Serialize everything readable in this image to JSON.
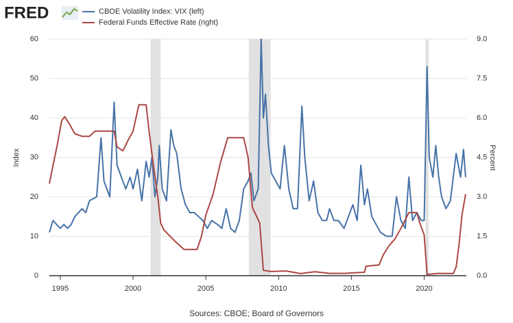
{
  "chart_data": {
    "type": "line",
    "logo": "FRED",
    "source": "Sources: CBOE; Board of Governors",
    "ylabel": "Index",
    "y2label": "Percent",
    "xlim": [
      1994.25,
      2022.9
    ],
    "xticks": [
      1995,
      2000,
      2005,
      2010,
      2015,
      2020
    ],
    "ylim": [
      0,
      60
    ],
    "yticks": [
      0,
      10,
      20,
      30,
      40,
      50,
      60
    ],
    "y2lim": [
      0,
      9
    ],
    "y2ticks": [
      {
        "value": 0,
        "label": "0.0"
      },
      1.5,
      {
        "value": 3,
        "label": "3.0"
      },
      4.5,
      {
        "value": 6,
        "label": "6.0"
      },
      7.5,
      {
        "value": 9,
        "label": "9.0"
      }
    ],
    "grid": true,
    "recession_color": "#e1e1e1",
    "recessions": [
      [
        2001.2,
        2001.9
      ],
      [
        2007.95,
        2009.45
      ],
      [
        2020.1,
        2020.3
      ]
    ],
    "series": [
      {
        "name": "CBOE Volatility Index: VIX (left)",
        "color": "#4572a7",
        "axis": "y",
        "x": [
          1994.25,
          1994.5,
          1994.75,
          1995,
          1995.25,
          1995.5,
          1995.75,
          1996,
          1996.5,
          1996.75,
          1997,
          1997.5,
          1997.8,
          1998,
          1998.4,
          1998.7,
          1998.9,
          1999.2,
          1999.5,
          1999.8,
          2000,
          2000.3,
          2000.6,
          2000.9,
          2001.1,
          2001.3,
          2001.5,
          2001.7,
          2001.8,
          2002,
          2002.3,
          2002.6,
          2002.8,
          2003,
          2003.3,
          2003.6,
          2003.9,
          2004.2,
          2004.5,
          2004.8,
          2005.1,
          2005.4,
          2005.8,
          2006.1,
          2006.4,
          2006.7,
          2007,
          2007.3,
          2007.6,
          2007.9,
          2008.1,
          2008.3,
          2008.6,
          2008.8,
          2008.95,
          2009.1,
          2009.3,
          2009.5,
          2009.8,
          2010.1,
          2010.4,
          2010.7,
          2011,
          2011.3,
          2011.6,
          2011.8,
          2012.1,
          2012.4,
          2012.7,
          2013,
          2013.3,
          2013.5,
          2013.8,
          2014.1,
          2014.5,
          2014.8,
          2015.1,
          2015.4,
          2015.65,
          2015.9,
          2016.1,
          2016.4,
          2016.7,
          2017,
          2017.4,
          2017.8,
          2018.1,
          2018.4,
          2018.7,
          2018.95,
          2019.2,
          2019.5,
          2019.8,
          2020,
          2020.2,
          2020.35,
          2020.6,
          2020.8,
          2021,
          2021.2,
          2021.5,
          2021.8,
          2022,
          2022.2,
          2022.5,
          2022.7,
          2022.85
        ],
        "values": [
          11,
          14,
          13,
          12,
          13,
          12,
          13,
          15,
          17,
          16,
          19,
          20,
          35,
          24,
          20,
          44,
          28,
          25,
          22,
          25,
          22,
          27,
          19,
          29,
          25,
          30,
          20,
          25,
          33,
          22,
          19,
          37,
          33,
          31,
          22,
          18,
          16,
          16,
          15,
          14,
          12,
          14,
          13,
          12,
          17,
          12,
          11,
          14,
          22,
          24,
          26,
          19,
          22,
          60,
          40,
          46,
          33,
          26,
          24,
          22,
          33,
          22,
          17,
          17,
          43,
          30,
          19,
          24,
          16,
          14,
          14,
          17,
          14,
          14,
          12,
          15,
          18,
          14,
          28,
          18,
          22,
          15,
          13,
          11,
          10,
          10,
          20,
          14,
          12,
          25,
          14,
          16,
          14,
          14,
          53,
          30,
          25,
          33,
          25,
          20,
          17,
          19,
          25,
          31,
          25,
          32,
          25
        ]
      },
      {
        "name": "Federal Funds Effective Rate (right)",
        "color": "#aa4643",
        "axis": "y2",
        "x": [
          1994.25,
          1994.5,
          1994.8,
          1995.1,
          1995.3,
          1995.6,
          1996,
          1996.5,
          1997,
          1997.4,
          1998,
          1998.7,
          1998.9,
          1999.3,
          1999.7,
          2000,
          2000.4,
          2000.9,
          2001.1,
          2001.4,
          2001.7,
          2001.9,
          2002.1,
          2002.9,
          2003.5,
          2004.4,
          2004.7,
          2005,
          2005.5,
          2006,
          2006.5,
          2007.6,
          2007.9,
          2008.2,
          2008.7,
          2008.95,
          2009.5,
          2010.5,
          2011.5,
          2012.5,
          2013.5,
          2014.5,
          2015.9,
          2016,
          2016.9,
          2017.2,
          2017.6,
          2018,
          2018.5,
          2018.95,
          2019.5,
          2019.7,
          2020,
          2020.2,
          2021,
          2022,
          2022.2,
          2022.4,
          2022.6,
          2022.85
        ],
        "values": [
          3.5,
          4.2,
          5.0,
          5.9,
          6.05,
          5.8,
          5.4,
          5.3,
          5.3,
          5.5,
          5.5,
          5.5,
          4.9,
          4.75,
          5.2,
          5.5,
          6.5,
          6.5,
          5.5,
          4.2,
          3.0,
          2.0,
          1.75,
          1.3,
          1.0,
          1.0,
          1.5,
          2.3,
          3.1,
          4.3,
          5.25,
          5.25,
          4.5,
          2.6,
          2.0,
          0.2,
          0.16,
          0.18,
          0.08,
          0.15,
          0.09,
          0.09,
          0.13,
          0.36,
          0.41,
          0.8,
          1.15,
          1.4,
          1.9,
          2.4,
          2.4,
          2.0,
          1.55,
          0.05,
          0.09,
          0.08,
          0.33,
          1.2,
          2.3,
          3.1
        ]
      }
    ]
  }
}
